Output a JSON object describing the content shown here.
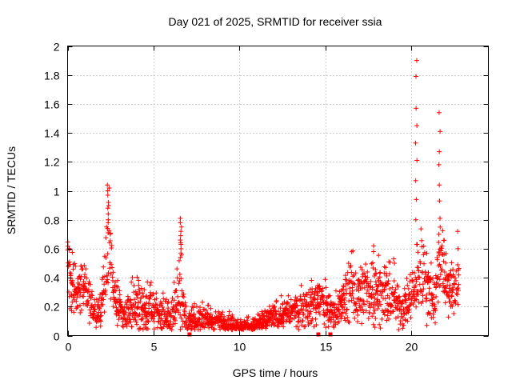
{
  "chart_data": {
    "type": "scatter",
    "title": "Day 021 of 2025, SRMTID for receiver ssia",
    "xlabel": "GPS time / hours",
    "ylabel": "SRMTID / TECUs",
    "xlim": [
      0,
      24.5
    ],
    "ylim": [
      0,
      2
    ],
    "xticks": [
      0,
      5,
      10,
      15,
      20
    ],
    "yticks": [
      0,
      0.2,
      0.4,
      0.6,
      0.8,
      1,
      1.2,
      1.4,
      1.6,
      1.8,
      2
    ],
    "xtick_labels": [
      "0",
      "5",
      "10",
      "15",
      "20"
    ],
    "ytick_labels": [
      "0",
      "0.2",
      "0.4",
      "0.6",
      "0.8",
      "1",
      "1.2",
      "1.4",
      "1.6",
      "1.8",
      "2"
    ],
    "grid": true,
    "marker": "plus",
    "color": "#ff0000",
    "envelope": {
      "hours": [
        0.0,
        0.3,
        0.6,
        0.9,
        1.1,
        1.5,
        1.9,
        2.2,
        2.4,
        2.6,
        2.9,
        3.3,
        3.7,
        4.1,
        4.5,
        4.9,
        5.3,
        5.7,
        6.1,
        6.4,
        6.6,
        6.8,
        7.0,
        7.4,
        7.9,
        8.4,
        8.9,
        9.4,
        9.9,
        10.4,
        10.9,
        11.4,
        11.9,
        12.4,
        12.9,
        13.4,
        13.9,
        14.3,
        14.7,
        15.1,
        15.5,
        15.9,
        16.3,
        16.7,
        17.1,
        17.5,
        17.9,
        18.3,
        18.7,
        19.1,
        19.5,
        19.9,
        20.2,
        20.5,
        20.8,
        21.1,
        21.4,
        21.7,
        22.0,
        22.3,
        22.6,
        22.8
      ],
      "center": [
        0.45,
        0.35,
        0.3,
        0.4,
        0.3,
        0.15,
        0.18,
        0.35,
        0.7,
        0.35,
        0.2,
        0.12,
        0.2,
        0.22,
        0.18,
        0.2,
        0.15,
        0.14,
        0.12,
        0.3,
        0.4,
        0.15,
        0.08,
        0.1,
        0.12,
        0.1,
        0.1,
        0.09,
        0.07,
        0.06,
        0.07,
        0.1,
        0.13,
        0.15,
        0.16,
        0.18,
        0.2,
        0.22,
        0.25,
        0.2,
        0.15,
        0.2,
        0.3,
        0.32,
        0.3,
        0.28,
        0.35,
        0.3,
        0.28,
        0.22,
        0.2,
        0.25,
        0.3,
        0.45,
        0.4,
        0.3,
        0.25,
        0.6,
        0.4,
        0.3,
        0.35,
        0.4
      ],
      "spread": [
        0.12,
        0.1,
        0.08,
        0.1,
        0.08,
        0.06,
        0.07,
        0.12,
        0.2,
        0.12,
        0.07,
        0.05,
        0.08,
        0.09,
        0.08,
        0.08,
        0.07,
        0.06,
        0.06,
        0.12,
        0.2,
        0.07,
        0.04,
        0.05,
        0.05,
        0.05,
        0.04,
        0.04,
        0.03,
        0.03,
        0.03,
        0.04,
        0.04,
        0.05,
        0.05,
        0.06,
        0.07,
        0.08,
        0.08,
        0.07,
        0.06,
        0.07,
        0.1,
        0.12,
        0.11,
        0.1,
        0.12,
        0.1,
        0.1,
        0.08,
        0.07,
        0.08,
        0.1,
        0.15,
        0.12,
        0.1,
        0.08,
        0.15,
        0.1,
        0.08,
        0.1,
        0.1
      ]
    },
    "spikes": [
      {
        "hour": 2.35,
        "values": [
          1.04,
          1.0,
          0.97,
          0.92,
          0.88,
          0.84,
          0.8,
          0.78,
          0.74,
          0.71
        ]
      },
      {
        "hour": 6.6,
        "values": [
          0.81,
          0.78,
          0.75,
          0.72,
          0.69,
          0.66,
          0.63,
          0.6,
          0.57,
          0.54
        ]
      },
      {
        "hour": 20.3,
        "values": [
          1.9,
          1.79,
          1.57,
          1.45,
          1.33,
          1.21,
          1.07,
          0.94,
          0.8,
          0.63
        ]
      },
      {
        "hour": 21.65,
        "values": [
          1.54,
          1.41,
          1.27,
          1.18,
          1.04,
          0.93,
          0.81,
          0.7
        ]
      },
      {
        "hour": 22.7,
        "values": [
          0.72,
          0.6
        ]
      },
      {
        "hour": 17.8,
        "values": [
          0.62,
          0.58
        ]
      },
      {
        "hour": 19.0,
        "values": [
          0.53,
          0.5
        ]
      }
    ],
    "zero_markers": [
      7.1,
      14.6,
      15.3
    ]
  }
}
